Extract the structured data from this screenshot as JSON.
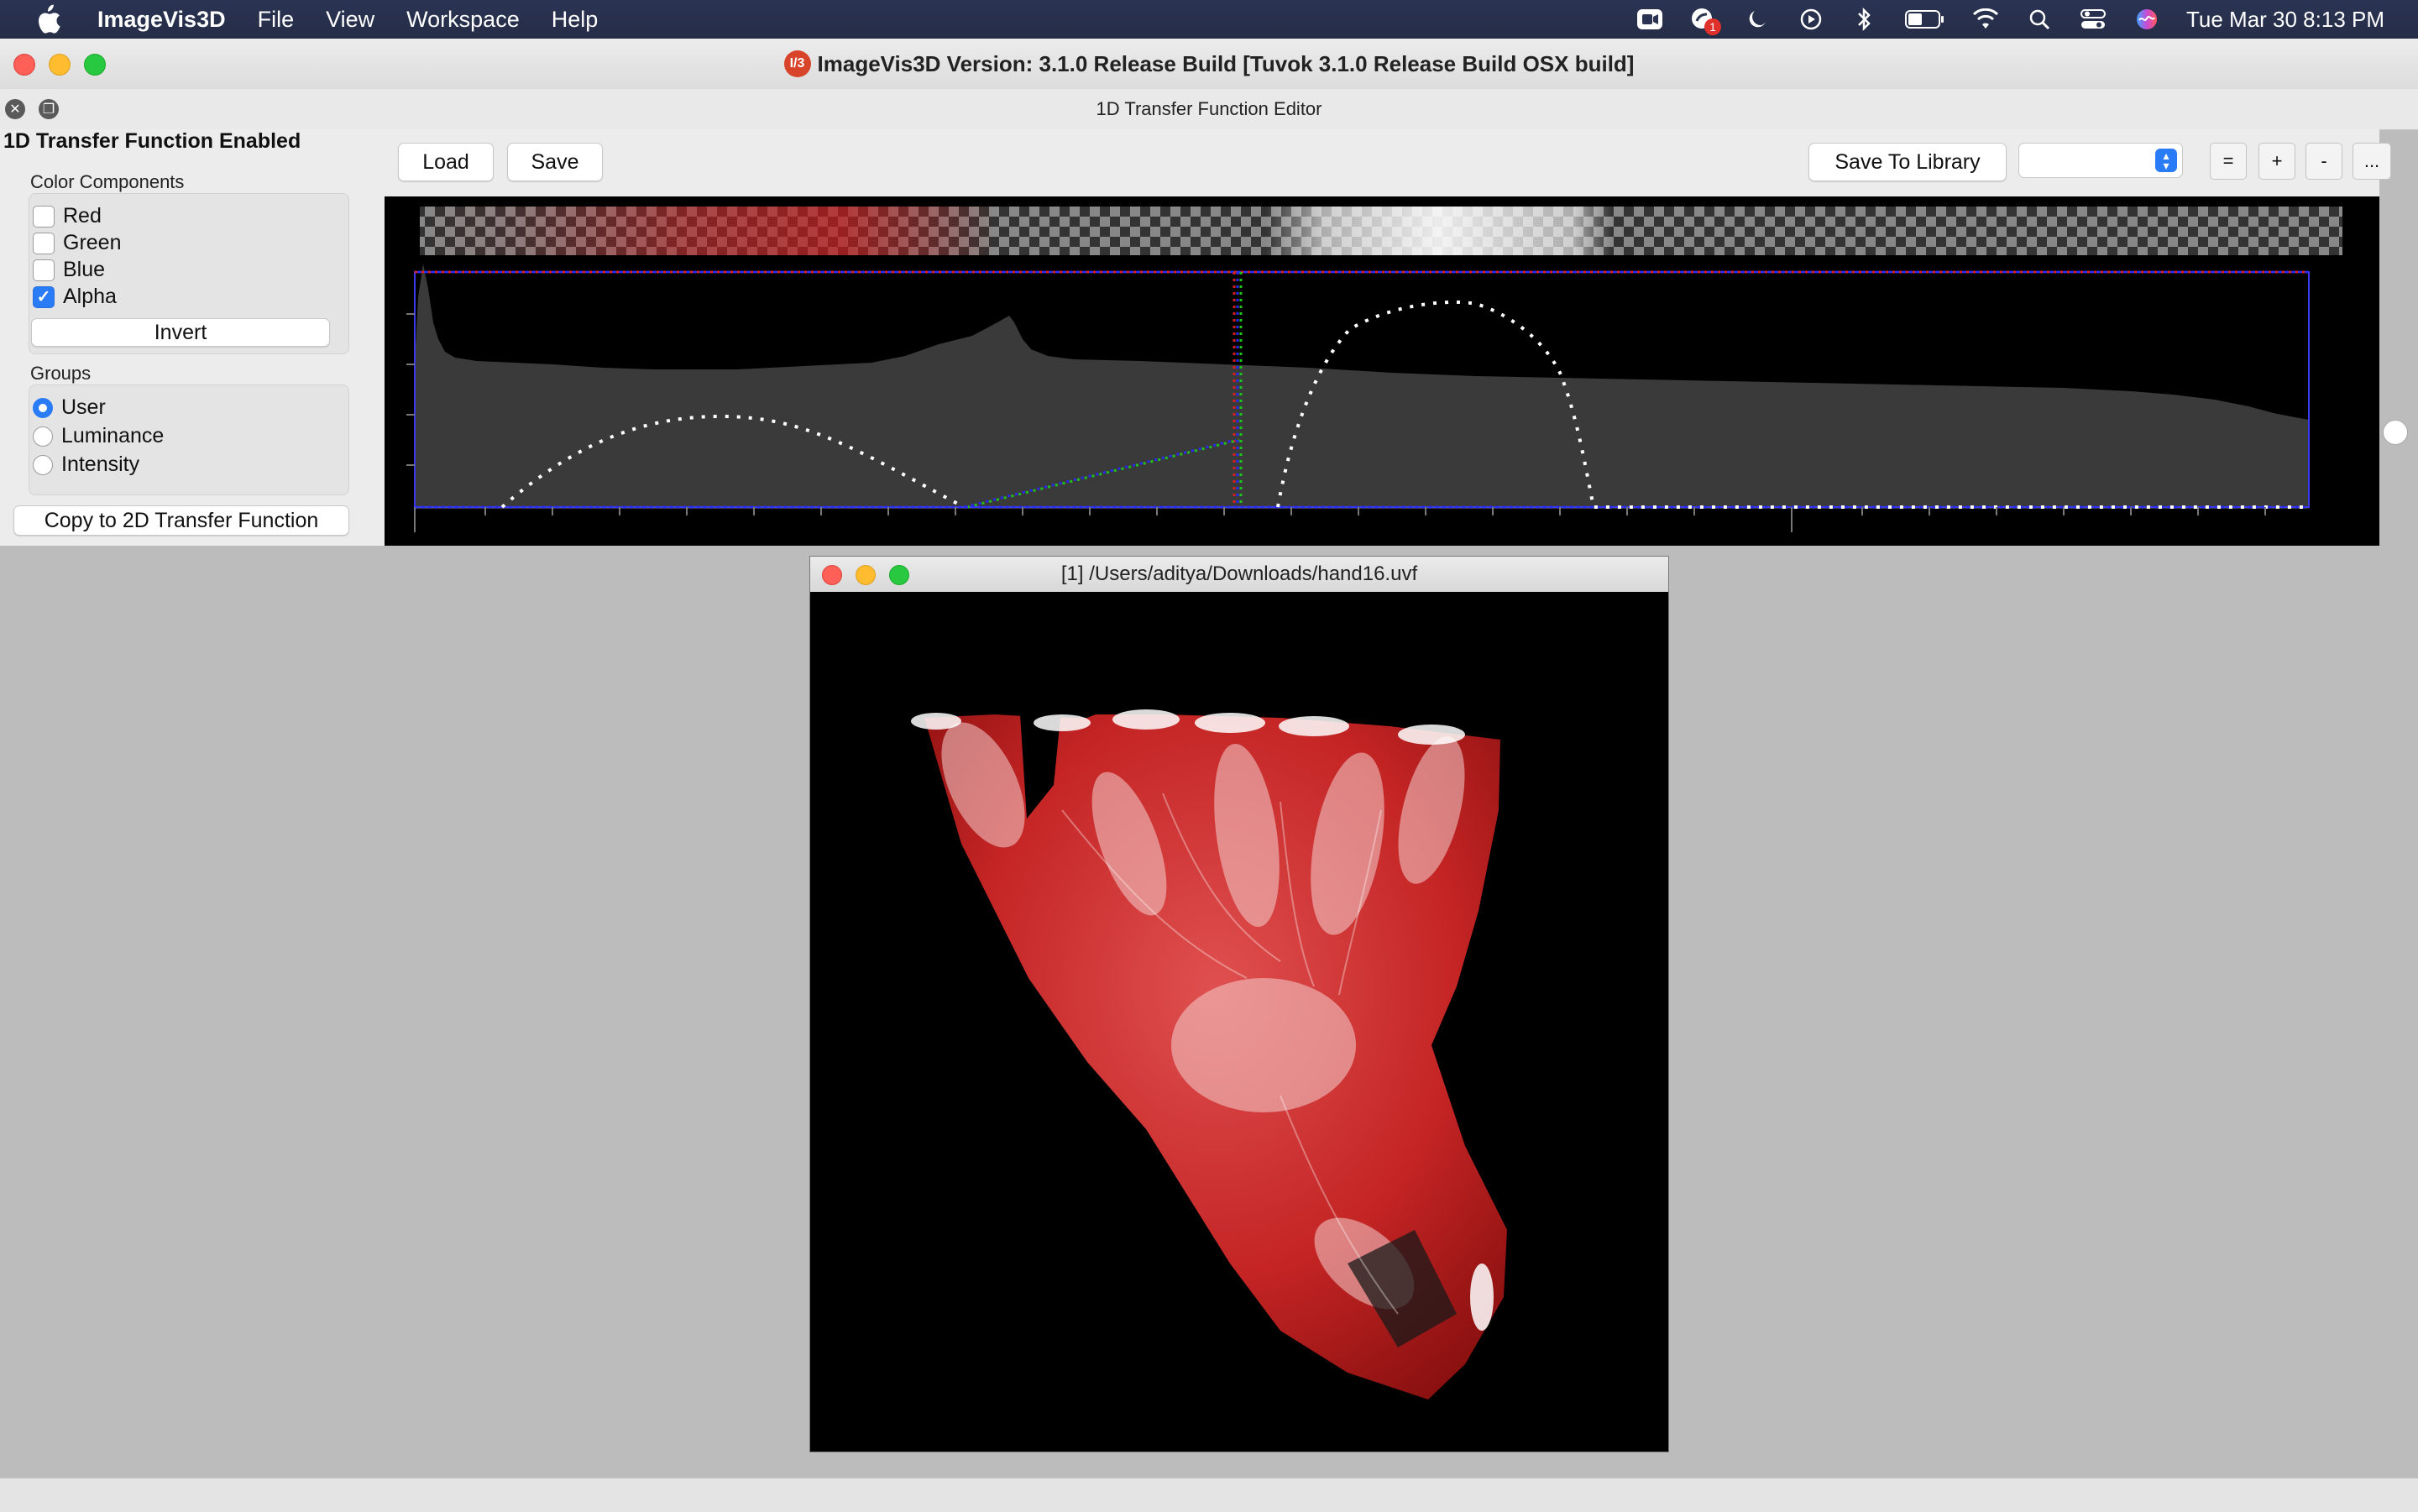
{
  "menubar": {
    "app_name": "ImageVis3D",
    "menus": [
      "File",
      "View",
      "Workspace",
      "Help"
    ],
    "clock": "Tue Mar 30  8:13 PM",
    "notification_count": "1",
    "status_icons": [
      "zoom-icon",
      "notification-icon",
      "moon-icon",
      "play-icon",
      "bluetooth-icon",
      "battery-icon",
      "wifi-icon",
      "search-icon",
      "control-center-icon",
      "siri-icon"
    ]
  },
  "window": {
    "logo_text": "I/3",
    "title": "ImageVis3D Version: 3.1.0 Release Build [Tuvok 3.1.0 Release Build OSX build]"
  },
  "dock": {
    "title": "1D Transfer Function Editor"
  },
  "panel": {
    "enabled_label": "1D Transfer Function Enabled",
    "color_components_label": "Color Components",
    "components": [
      {
        "label": "Red",
        "checked": false
      },
      {
        "label": "Green",
        "checked": false
      },
      {
        "label": "Blue",
        "checked": false
      },
      {
        "label": "Alpha",
        "checked": true
      }
    ],
    "invert_label": "Invert",
    "groups_label": "Groups",
    "groups": [
      {
        "label": "User",
        "selected": true
      },
      {
        "label": "Luminance",
        "selected": false
      },
      {
        "label": "Intensity",
        "selected": false
      }
    ],
    "copy_label": "Copy to 2D Transfer Function"
  },
  "toolbar": {
    "load_label": "Load",
    "save_label": "Save",
    "save_library_label": "Save To Library",
    "library_select_value": "",
    "equal_label": "=",
    "plus_label": "+",
    "minus_label": "-",
    "more_label": "..."
  },
  "render_window": {
    "title": "[1] /Users/aditya/Downloads/hand16.uvf"
  },
  "colors": {
    "accent": "#2a7bf6",
    "tf_red": "#d42020",
    "histogram": "#3a3a3a",
    "curve": "#ffffff"
  }
}
